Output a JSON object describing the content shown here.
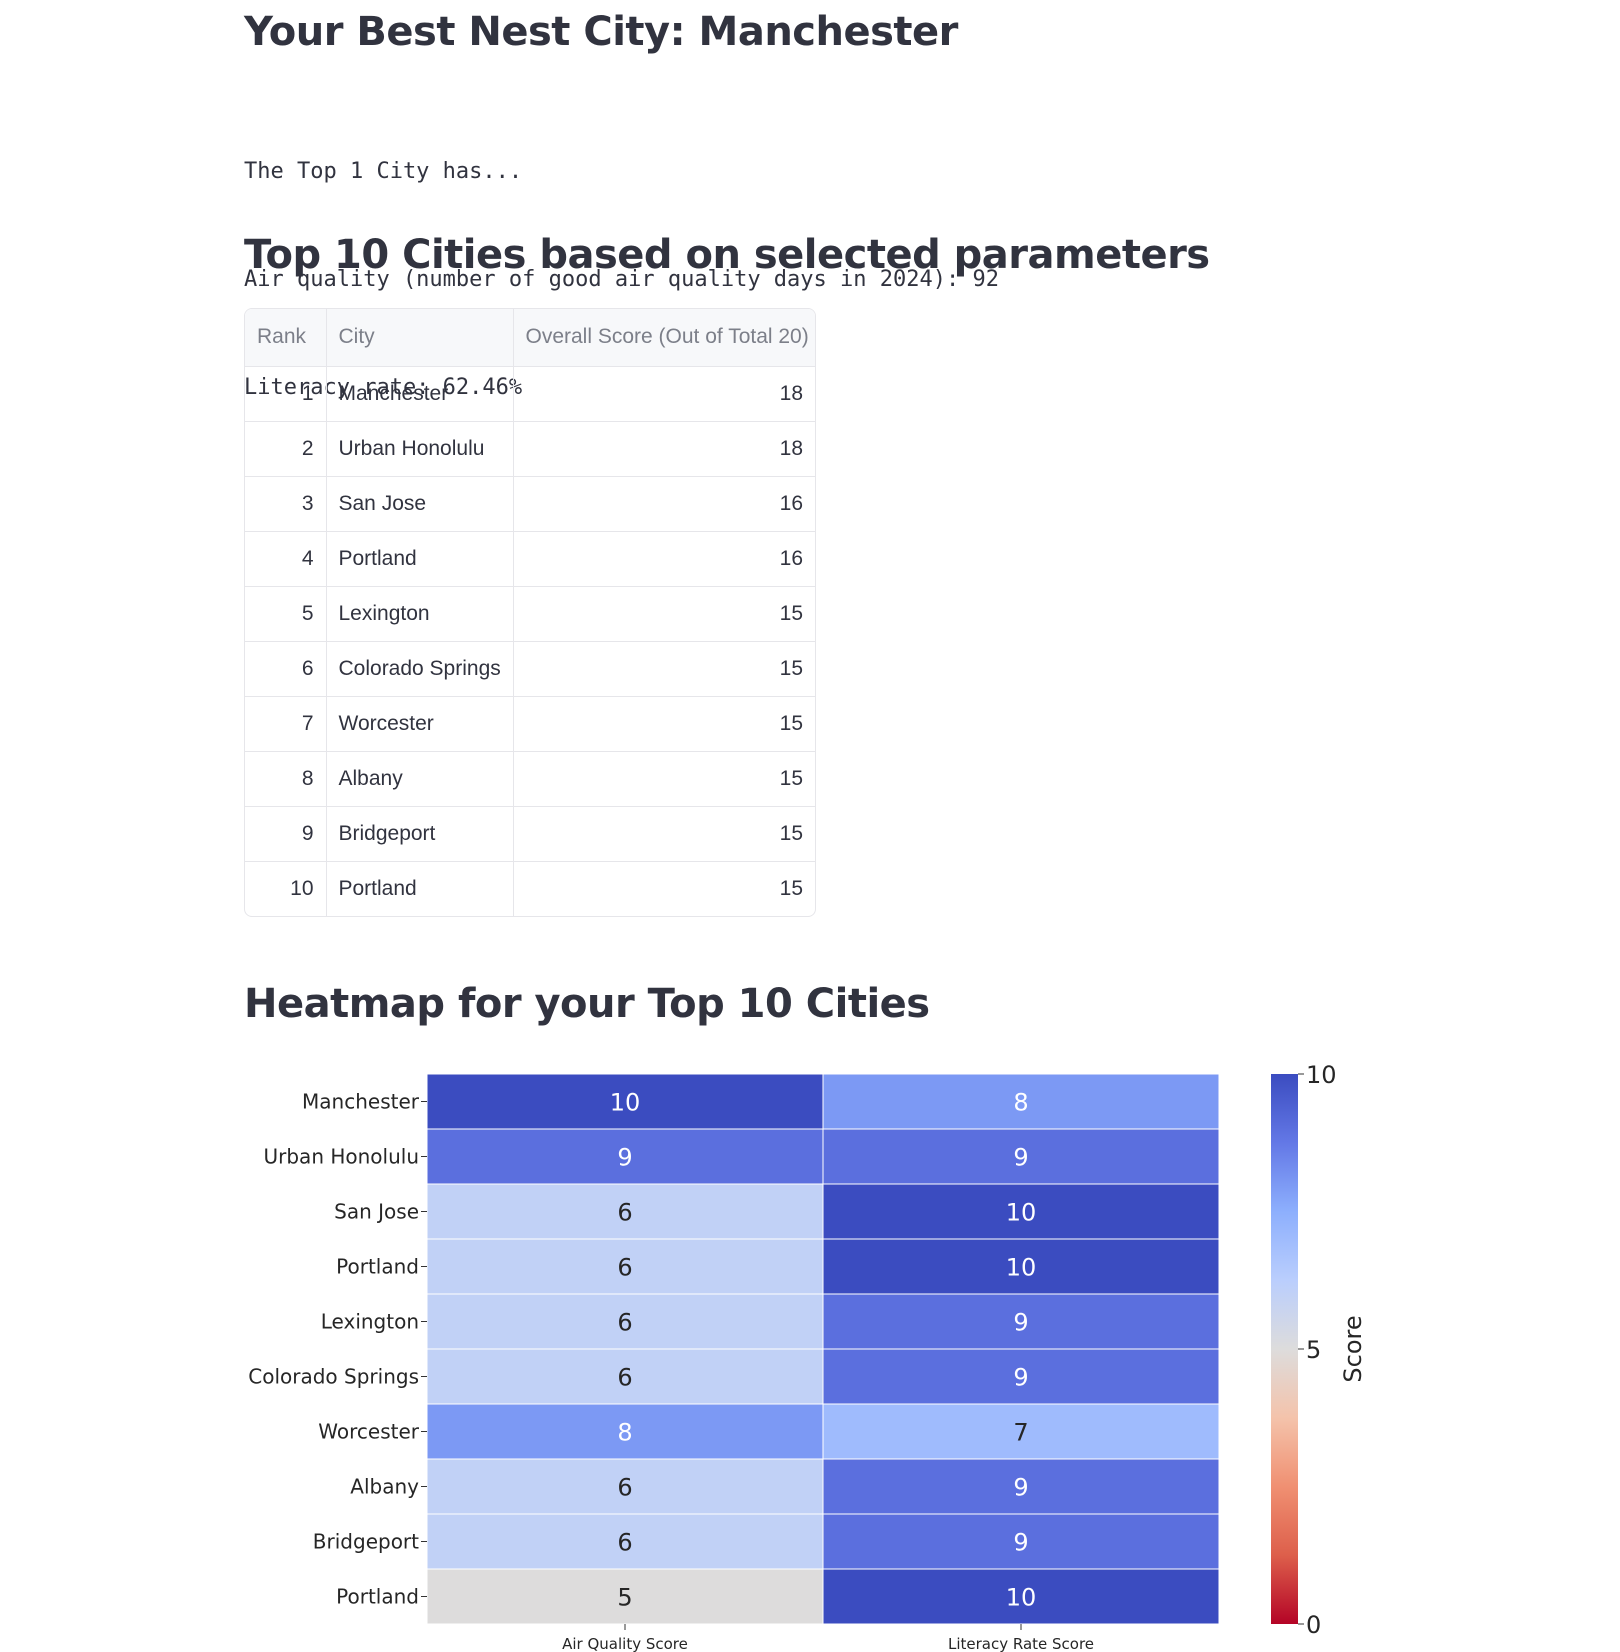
{
  "header": {
    "title": "Your Best Nest City: Manchester",
    "lines": [
      "The Top 1 City has...",
      "Air quality (number of good air quality days in 2024): 92",
      "Literacy rate: 62.46%"
    ]
  },
  "top10": {
    "title": "Top 10 Cities based on selected parameters",
    "columns": [
      "Rank",
      "City",
      "Overall Score (Out of Total 20)"
    ],
    "rows": [
      {
        "rank": "1",
        "city": "Manchester",
        "score": "18"
      },
      {
        "rank": "2",
        "city": "Urban Honolulu",
        "score": "18"
      },
      {
        "rank": "3",
        "city": "San Jose",
        "score": "16"
      },
      {
        "rank": "4",
        "city": "Portland",
        "score": "16"
      },
      {
        "rank": "5",
        "city": "Lexington",
        "score": "15"
      },
      {
        "rank": "6",
        "city": "Colorado Springs",
        "score": "15"
      },
      {
        "rank": "7",
        "city": "Worcester",
        "score": "15"
      },
      {
        "rank": "8",
        "city": "Albany",
        "score": "15"
      },
      {
        "rank": "9",
        "city": "Bridgeport",
        "score": "15"
      },
      {
        "rank": "10",
        "city": "Portland",
        "score": "15"
      }
    ]
  },
  "heatmap": {
    "title": "Heatmap for your Top 10 Cities"
  },
  "chart_data": {
    "type": "heatmap",
    "rows": [
      "Manchester",
      "Urban Honolulu",
      "San Jose",
      "Portland",
      "Lexington",
      "Colorado Springs",
      "Worcester",
      "Albany",
      "Bridgeport",
      "Portland"
    ],
    "columns": [
      "Air Quality Score",
      "Literacy Rate Score"
    ],
    "values": [
      [
        10,
        8
      ],
      [
        9,
        9
      ],
      [
        6,
        10
      ],
      [
        6,
        10
      ],
      [
        6,
        9
      ],
      [
        6,
        9
      ],
      [
        8,
        7
      ],
      [
        6,
        9
      ],
      [
        6,
        9
      ],
      [
        5,
        10
      ]
    ],
    "colorbar": {
      "label": "Score",
      "min": 0,
      "max": 10,
      "ticks": [
        "0",
        "5",
        "10"
      ],
      "colormap": "coolwarm_r"
    },
    "colors": {
      "0": "#b40426",
      "5": "#dddcdc",
      "10": "#3b4cc0"
    }
  }
}
